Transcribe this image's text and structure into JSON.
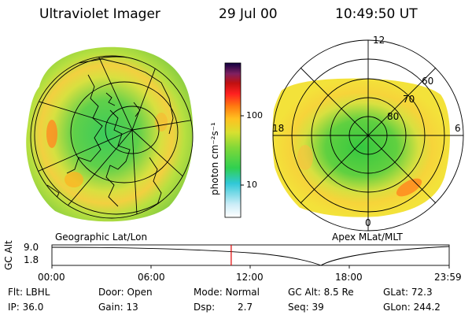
{
  "header": {
    "title": "Ultraviolet Imager",
    "date": "29 Jul 00",
    "time": "10:49:50 UT"
  },
  "colorbar": {
    "unit_label": "photon cm⁻²s⁻¹",
    "ticks": [
      "100",
      "10"
    ]
  },
  "left_map": {
    "caption": "Geographic Lat/Lon"
  },
  "right_map": {
    "caption": "Apex MLat/MLT",
    "mlt_labels": {
      "top": "12",
      "left": "18",
      "right": "6",
      "bottom": "0"
    },
    "lat_labels": [
      "60",
      "70",
      "80"
    ]
  },
  "timeline": {
    "ylabel": "GC Alt",
    "yticks": [
      "9.0",
      "1.8"
    ],
    "xticks": [
      "00:00",
      "06:00",
      "12:00",
      "18:00",
      "23:59"
    ],
    "marker_time_fraction": 0.4513
  },
  "footer": {
    "flt": "Flt: LBHL",
    "ip": "IP: 36.0",
    "door": "Door: Open",
    "gain": "Gain: 13",
    "mode": "Mode: Normal",
    "dsp_label": "Dsp:",
    "dsp_value": "2.7",
    "gc_alt": "GC Alt: 8.5 Re",
    "seq": "Seq: 39",
    "glat": "GLat:  72.3",
    "glon": "GLon: 244.2"
  },
  "colors": {
    "marker": "#e00000",
    "aurora_bg": "#9ad23a",
    "aurora_inner": "#40d040",
    "aurora_oval": "#f6e23a",
    "aurora_peak": "#ff9a20"
  }
}
